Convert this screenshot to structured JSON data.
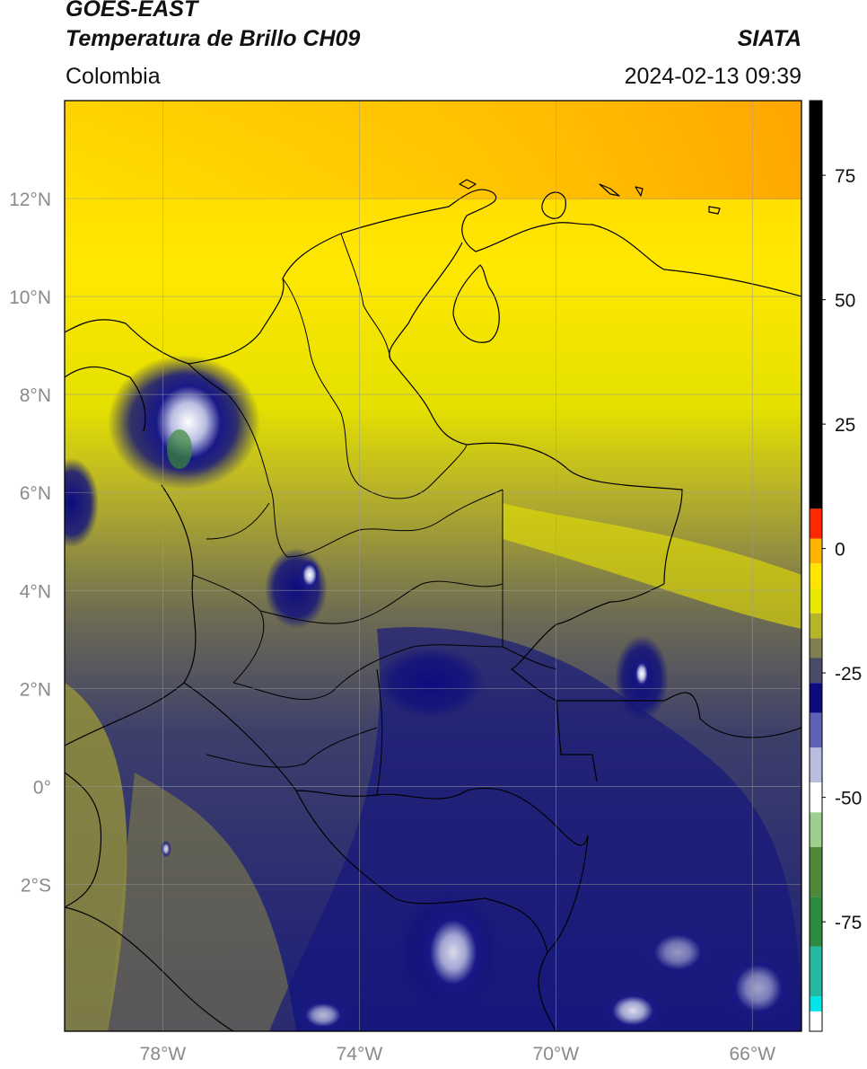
{
  "header": {
    "satellite": "GOES-EAST",
    "product": "Temperatura de Brillo CH09",
    "region": "Colombia",
    "organization": "SIATA",
    "timestamp": "2024-02-13 09:39"
  },
  "map": {
    "extent": {
      "lon_min": -80,
      "lon_max": -65,
      "lat_min": -5,
      "lat_max": 14
    },
    "lat_ticks": [
      {
        "value": 12,
        "label": "12°N"
      },
      {
        "value": 10,
        "label": "10°N"
      },
      {
        "value": 8,
        "label": "8°N"
      },
      {
        "value": 6,
        "label": "6°N"
      },
      {
        "value": 4,
        "label": "4°N"
      },
      {
        "value": 2,
        "label": "2°N"
      },
      {
        "value": 0,
        "label": "0°"
      },
      {
        "value": -2,
        "label": "2°S"
      }
    ],
    "lon_ticks": [
      {
        "value": -78,
        "label": "78°W"
      },
      {
        "value": -74,
        "label": "74°W"
      },
      {
        "value": -70,
        "label": "70°W"
      },
      {
        "value": -66,
        "label": "66°W"
      }
    ]
  },
  "colorbar": {
    "range": [
      -97,
      90
    ],
    "ticks": [
      {
        "value": 75,
        "label": "75"
      },
      {
        "value": 50,
        "label": "50"
      },
      {
        "value": 25,
        "label": "25"
      },
      {
        "value": 0,
        "label": "0"
      },
      {
        "value": -25,
        "label": "-25"
      },
      {
        "value": -50,
        "label": "-50"
      },
      {
        "value": -75,
        "label": "-75"
      }
    ],
    "segments": [
      {
        "from": -97,
        "to": -93,
        "color": "#ffffff"
      },
      {
        "from": -93,
        "to": -90,
        "color": "#00e5e5"
      },
      {
        "from": -90,
        "to": -80,
        "color": "#25b8a0"
      },
      {
        "from": -80,
        "to": -70,
        "color": "#2e8b40"
      },
      {
        "from": -70,
        "to": -60,
        "color": "#4f8a3a"
      },
      {
        "from": -60,
        "to": -53,
        "color": "#9ccf8e"
      },
      {
        "from": -53,
        "to": -47,
        "color": "#ffffff"
      },
      {
        "from": -47,
        "to": -40,
        "color": "#b9bde0"
      },
      {
        "from": -40,
        "to": -33,
        "color": "#5e61b5"
      },
      {
        "from": -33,
        "to": -27,
        "color": "#0c0c80"
      },
      {
        "from": -27,
        "to": -22,
        "color": "#4a4a6c"
      },
      {
        "from": -22,
        "to": -18,
        "color": "#7f7f50"
      },
      {
        "from": -18,
        "to": -13,
        "color": "#b5b52a"
      },
      {
        "from": -13,
        "to": -8,
        "color": "#e8e800"
      },
      {
        "from": -8,
        "to": -3,
        "color": "#ffe600"
      },
      {
        "from": -3,
        "to": 2,
        "color": "#ffb400"
      },
      {
        "from": 2,
        "to": 8,
        "color": "#ff2800"
      },
      {
        "from": 8,
        "to": 90,
        "color": "#000000"
      }
    ]
  }
}
